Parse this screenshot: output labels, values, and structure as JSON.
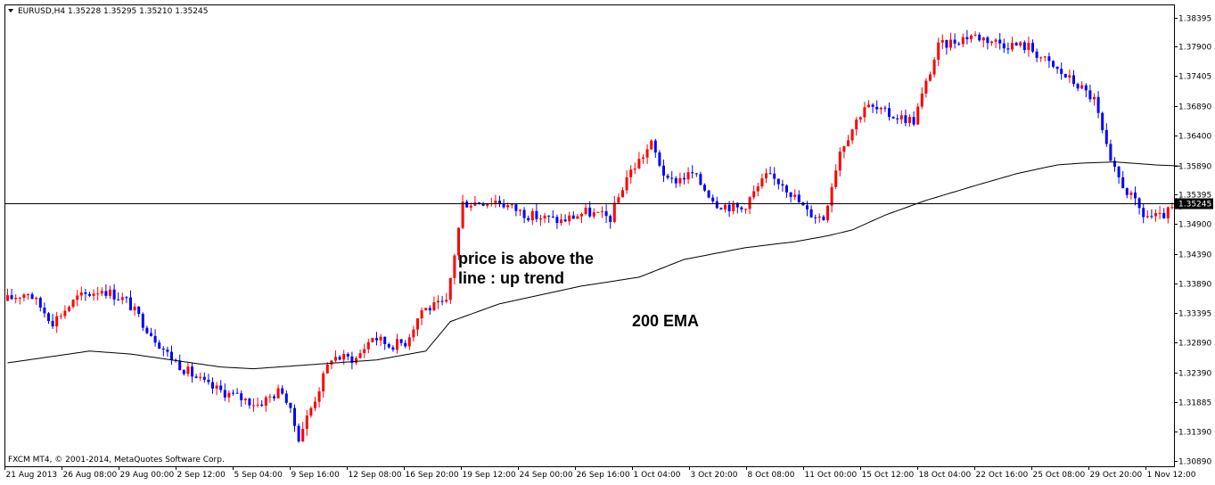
{
  "header": {
    "symbol_menu_icon": "triangle-down-icon",
    "text": "EURUSD,H4  1.35228 1.35295 1.35210 1.35245"
  },
  "copyright": "FXCM MT4, © 2001-2014, MetaQuotes Software Corp.",
  "annotations": {
    "trend_line1": "price is above the",
    "trend_line2": "line : up trend",
    "ema_label": "200 EMA"
  },
  "colors": {
    "bull": "#ff0000",
    "bear": "#0000ff",
    "ema": "#000000",
    "grid": "#000000",
    "background": "#ffffff",
    "price_tag": "#000000"
  },
  "chart_data": {
    "type": "candlestick",
    "symbol": "EURUSD",
    "timeframe": "H4",
    "current_price": "1.35245",
    "ylim": [
      1.308,
      1.386
    ],
    "y_ticks": [
      "1.38395",
      "1.37900",
      "1.37405",
      "1.36890",
      "1.36400",
      "1.35890",
      "1.35395",
      "1.34900",
      "1.34390",
      "1.33890",
      "1.33395",
      "1.32890",
      "1.32390",
      "1.31885",
      "1.31390",
      "1.30890"
    ],
    "x_ticks": [
      "21 Aug 2013",
      "26 Aug 08:00",
      "29 Aug 00:00",
      "2 Sep 12:00",
      "5 Sep 04:00",
      "9 Sep 16:00",
      "12 Sep 08:00",
      "16 Sep 20:00",
      "19 Sep 12:00",
      "24 Sep 00:00",
      "26 Sep 16:00",
      "1 Oct 04:00",
      "3 Oct 20:00",
      "8 Oct 08:00",
      "11 Oct 00:00",
      "15 Oct 12:00",
      "18 Oct 04:00",
      "22 Oct 16:00",
      "25 Oct 08:00",
      "29 Oct 20:00",
      "1 Nov 12:00"
    ],
    "price_path": [
      [
        0,
        1.336
      ],
      [
        6,
        1.3375
      ],
      [
        12,
        1.3325
      ],
      [
        18,
        1.3365
      ],
      [
        24,
        1.338
      ],
      [
        30,
        1.336
      ],
      [
        36,
        1.3305
      ],
      [
        40,
        1.327
      ],
      [
        44,
        1.3245
      ],
      [
        50,
        1.3215
      ],
      [
        56,
        1.32
      ],
      [
        62,
        1.3185
      ],
      [
        68,
        1.321
      ],
      [
        72,
        1.313
      ],
      [
        76,
        1.3195
      ],
      [
        80,
        1.3265
      ],
      [
        86,
        1.3262
      ],
      [
        90,
        1.33
      ],
      [
        94,
        1.3285
      ],
      [
        98,
        1.329
      ],
      [
        102,
        1.3345
      ],
      [
        108,
        1.3355
      ],
      [
        112,
        1.3525
      ],
      [
        120,
        1.353
      ],
      [
        128,
        1.3505
      ],
      [
        136,
        1.3495
      ],
      [
        142,
        1.351
      ],
      [
        148,
        1.35
      ],
      [
        152,
        1.357
      ],
      [
        158,
        1.3625
      ],
      [
        162,
        1.356
      ],
      [
        168,
        1.3575
      ],
      [
        174,
        1.3525
      ],
      [
        180,
        1.3515
      ],
      [
        186,
        1.357
      ],
      [
        190,
        1.356
      ],
      [
        196,
        1.351
      ],
      [
        200,
        1.35
      ],
      [
        204,
        1.3615
      ],
      [
        210,
        1.369
      ],
      [
        216,
        1.3675
      ],
      [
        222,
        1.3665
      ],
      [
        228,
        1.379
      ],
      [
        236,
        1.381
      ],
      [
        244,
        1.3795
      ],
      [
        250,
        1.379
      ],
      [
        256,
        1.3755
      ],
      [
        262,
        1.3725
      ],
      [
        266,
        1.37
      ],
      [
        270,
        1.359
      ],
      [
        274,
        1.3545
      ],
      [
        278,
        1.3505
      ],
      [
        282,
        1.35
      ],
      [
        286,
        1.352
      ]
    ],
    "ema_200": [
      [
        0,
        1.3255
      ],
      [
        20,
        1.3275
      ],
      [
        30,
        1.327
      ],
      [
        52,
        1.3248
      ],
      [
        60,
        1.3245
      ],
      [
        80,
        1.3255
      ],
      [
        90,
        1.326
      ],
      [
        102,
        1.3275
      ],
      [
        108,
        1.3325
      ],
      [
        120,
        1.3355
      ],
      [
        140,
        1.3385
      ],
      [
        154,
        1.34
      ],
      [
        165,
        1.343
      ],
      [
        180,
        1.345
      ],
      [
        192,
        1.346
      ],
      [
        200,
        1.347
      ],
      [
        206,
        1.348
      ],
      [
        214,
        1.3505
      ],
      [
        224,
        1.353
      ],
      [
        236,
        1.3555
      ],
      [
        246,
        1.3575
      ],
      [
        256,
        1.359
      ],
      [
        262,
        1.3593
      ],
      [
        270,
        1.3595
      ],
      [
        280,
        1.359
      ],
      [
        286,
        1.3588
      ]
    ],
    "bar_count": 287
  }
}
